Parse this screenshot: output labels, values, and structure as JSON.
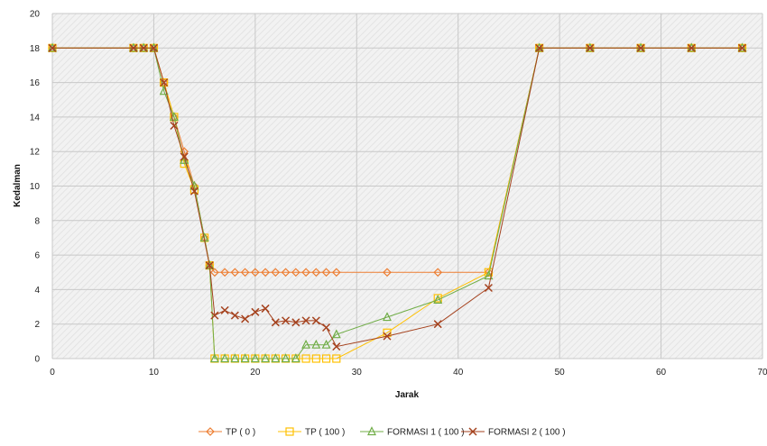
{
  "chart_data": {
    "type": "scatter",
    "xlabel": "Jarak",
    "ylabel": "Kedalman",
    "xlim": [
      0,
      70
    ],
    "ylim": [
      0,
      20
    ],
    "xticks": [
      0,
      10,
      20,
      30,
      40,
      50,
      60,
      70
    ],
    "yticks": [
      0,
      2,
      4,
      6,
      8,
      10,
      12,
      14,
      16,
      18,
      20
    ],
    "grid": true,
    "legend_position": "bottom",
    "series": [
      {
        "name": "TP ( 0 )",
        "color": "#ED7D31",
        "marker": "diamond",
        "points": [
          [
            0,
            18
          ],
          [
            8,
            18
          ],
          [
            9,
            18
          ],
          [
            10,
            18
          ],
          [
            11,
            16
          ],
          [
            12,
            14
          ],
          [
            13,
            12
          ],
          [
            14,
            10
          ],
          [
            15,
            7
          ],
          [
            15.5,
            5.4
          ],
          [
            16,
            5
          ],
          [
            17,
            5
          ],
          [
            18,
            5
          ],
          [
            19,
            5
          ],
          [
            20,
            5
          ],
          [
            21,
            5
          ],
          [
            22,
            5
          ],
          [
            23,
            5
          ],
          [
            24,
            5
          ],
          [
            25,
            5
          ],
          [
            26,
            5
          ],
          [
            27,
            5
          ],
          [
            28,
            5
          ],
          [
            33,
            5
          ],
          [
            38,
            5
          ],
          [
            43,
            5
          ],
          [
            48,
            18
          ],
          [
            53,
            18
          ],
          [
            58,
            18
          ],
          [
            63,
            18
          ],
          [
            68,
            18
          ]
        ]
      },
      {
        "name": "TP ( 100 )",
        "color": "#FFC000",
        "marker": "square",
        "points": [
          [
            0,
            18
          ],
          [
            8,
            18
          ],
          [
            9,
            18
          ],
          [
            10,
            18
          ],
          [
            11,
            16
          ],
          [
            12,
            14
          ],
          [
            13,
            11.3
          ],
          [
            14,
            9.8
          ],
          [
            15,
            7
          ],
          [
            15.5,
            5.4
          ],
          [
            16,
            0
          ],
          [
            17,
            0
          ],
          [
            18,
            0
          ],
          [
            19,
            0
          ],
          [
            20,
            0
          ],
          [
            21,
            0
          ],
          [
            22,
            0
          ],
          [
            23,
            0
          ],
          [
            24,
            0
          ],
          [
            25,
            0
          ],
          [
            26,
            0
          ],
          [
            27,
            0
          ],
          [
            28,
            0
          ],
          [
            33,
            1.5
          ],
          [
            38,
            3.5
          ],
          [
            43,
            5
          ],
          [
            48,
            18
          ],
          [
            53,
            18
          ],
          [
            58,
            18
          ],
          [
            63,
            18
          ],
          [
            68,
            18
          ]
        ]
      },
      {
        "name": "FORMASI 1 ( 100 )",
        "color": "#70AD47",
        "marker": "triangle",
        "points": [
          [
            0,
            18
          ],
          [
            8,
            18
          ],
          [
            9,
            18
          ],
          [
            10,
            18
          ],
          [
            11,
            15.5
          ],
          [
            12,
            14
          ],
          [
            13,
            11.5
          ],
          [
            14,
            10
          ],
          [
            15,
            7
          ],
          [
            15.5,
            5.4
          ],
          [
            16,
            0
          ],
          [
            17,
            0
          ],
          [
            18,
            0
          ],
          [
            19,
            0
          ],
          [
            20,
            0
          ],
          [
            21,
            0
          ],
          [
            22,
            0
          ],
          [
            23,
            0
          ],
          [
            24,
            0
          ],
          [
            25,
            0.8
          ],
          [
            26,
            0.8
          ],
          [
            27,
            0.8
          ],
          [
            28,
            1.4
          ],
          [
            33,
            2.4
          ],
          [
            38,
            3.4
          ],
          [
            43,
            4.8
          ],
          [
            48,
            18
          ],
          [
            53,
            18
          ],
          [
            58,
            18
          ],
          [
            63,
            18
          ],
          [
            68,
            18
          ]
        ]
      },
      {
        "name": "FORMASI 2 ( 100 )",
        "color": "#A5421E",
        "marker": "x",
        "points": [
          [
            0,
            18
          ],
          [
            8,
            18
          ],
          [
            9,
            18
          ],
          [
            10,
            18
          ],
          [
            11,
            16
          ],
          [
            12,
            13.5
          ],
          [
            13,
            11.7
          ],
          [
            14,
            9.7
          ],
          [
            15.5,
            5.4
          ],
          [
            16,
            2.5
          ],
          [
            17,
            2.8
          ],
          [
            18,
            2.5
          ],
          [
            19,
            2.3
          ],
          [
            20,
            2.7
          ],
          [
            21,
            2.9
          ],
          [
            22,
            2.1
          ],
          [
            23,
            2.2
          ],
          [
            24,
            2.1
          ],
          [
            25,
            2.2
          ],
          [
            26,
            2.2
          ],
          [
            27,
            1.8
          ],
          [
            28,
            0.7
          ],
          [
            33,
            1.3
          ],
          [
            38,
            2
          ],
          [
            43,
            4.1
          ],
          [
            48,
            18
          ],
          [
            53,
            18
          ],
          [
            58,
            18
          ],
          [
            63,
            18
          ],
          [
            68,
            18
          ]
        ]
      }
    ]
  }
}
